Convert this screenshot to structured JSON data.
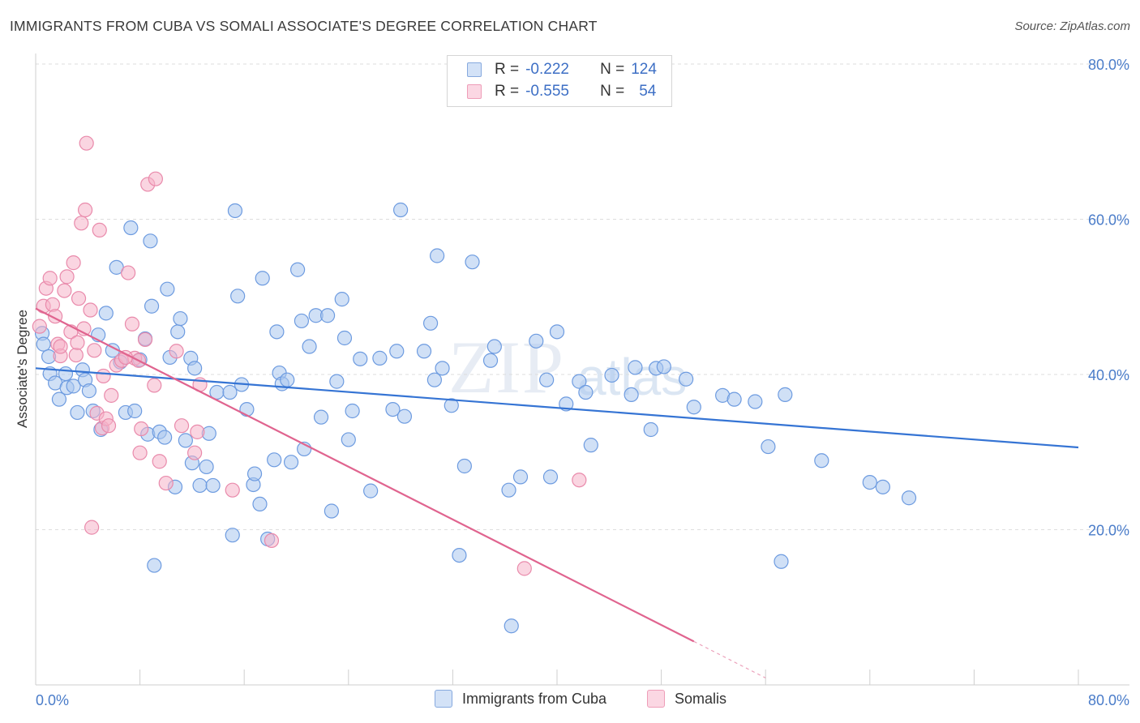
{
  "title": "IMMIGRANTS FROM CUBA VS SOMALI ASSOCIATE'S DEGREE CORRELATION CHART",
  "source": "Source: ZipAtlas.com",
  "watermark": {
    "zip": "ZIP",
    "atlas": "atlas"
  },
  "legend": {
    "rows": [
      {
        "r_label": "R =",
        "r_value": "-0.222",
        "n_label": "N =",
        "n_value": "124",
        "color": "#aac7ee"
      },
      {
        "r_label": "R =",
        "r_value": "-0.555",
        "n_label": "N =",
        "n_value": "54",
        "color": "#f5b8cb"
      }
    ]
  },
  "bottom_legend": [
    {
      "label": "Immigrants from Cuba",
      "color": "#aac7ee"
    },
    {
      "label": "Somalis",
      "color": "#f5b8cb"
    }
  ],
  "colors": {
    "cuba_fill": "#a9c6ee",
    "cuba_stroke": "#6d9be0",
    "cuba_line": "#3574d4",
    "somali_fill": "#f5b3c8",
    "somali_stroke": "#e98aab",
    "somali_line": "#e0648f",
    "grid": "#dddddd",
    "tick_text": "#4a7cc9"
  },
  "chart_data": {
    "type": "scatter",
    "title": "IMMIGRANTS FROM CUBA VS SOMALI ASSOCIATE'S DEGREE CORRELATION CHART",
    "xlabel": "",
    "ylabel": "Associate's Degree",
    "xlim": [
      0,
      80
    ],
    "ylim": [
      0,
      80
    ],
    "x_tick_labels": [
      "0.0%",
      "80.0%"
    ],
    "y_ticks": [
      20,
      40,
      60,
      80
    ],
    "y_tick_labels": [
      "20.0%",
      "40.0%",
      "60.0%",
      "80.0%"
    ],
    "grid": true,
    "legend_position": "top-center",
    "series": [
      {
        "name": "Immigrants from Cuba",
        "trend": {
          "x": [
            0,
            80
          ],
          "y": [
            40.8,
            30.6
          ]
        },
        "points": [
          [
            0.5,
            45.3
          ],
          [
            0.6,
            43.9
          ],
          [
            1.0,
            42.3
          ],
          [
            1.1,
            40.1
          ],
          [
            1.5,
            38.9
          ],
          [
            1.8,
            36.8
          ],
          [
            2.3,
            40.1
          ],
          [
            2.4,
            38.3
          ],
          [
            2.9,
            38.5
          ],
          [
            3.2,
            35.1
          ],
          [
            3.6,
            40.6
          ],
          [
            3.8,
            39.3
          ],
          [
            4.1,
            37.9
          ],
          [
            4.4,
            35.3
          ],
          [
            4.8,
            45.1
          ],
          [
            5.0,
            32.9
          ],
          [
            5.4,
            47.9
          ],
          [
            5.9,
            43.1
          ],
          [
            6.2,
            53.8
          ],
          [
            6.5,
            41.6
          ],
          [
            6.9,
            35.1
          ],
          [
            7.3,
            58.9
          ],
          [
            7.6,
            35.3
          ],
          [
            8.0,
            41.9
          ],
          [
            8.4,
            44.6
          ],
          [
            8.6,
            32.3
          ],
          [
            8.8,
            57.2
          ],
          [
            8.9,
            48.8
          ],
          [
            9.1,
            15.4
          ],
          [
            9.5,
            32.6
          ],
          [
            9.9,
            31.9
          ],
          [
            10.1,
            51.0
          ],
          [
            10.3,
            42.2
          ],
          [
            10.7,
            25.5
          ],
          [
            10.9,
            45.5
          ],
          [
            11.1,
            47.2
          ],
          [
            11.5,
            31.5
          ],
          [
            11.9,
            42.1
          ],
          [
            12.0,
            28.6
          ],
          [
            12.2,
            40.8
          ],
          [
            12.6,
            25.7
          ],
          [
            13.1,
            28.1
          ],
          [
            13.3,
            32.4
          ],
          [
            13.6,
            25.7
          ],
          [
            13.9,
            37.7
          ],
          [
            14.9,
            37.7
          ],
          [
            15.1,
            19.3
          ],
          [
            15.3,
            61.1
          ],
          [
            15.5,
            50.1
          ],
          [
            15.8,
            38.7
          ],
          [
            16.2,
            35.5
          ],
          [
            16.7,
            25.8
          ],
          [
            16.8,
            27.2
          ],
          [
            17.2,
            23.3
          ],
          [
            17.4,
            52.4
          ],
          [
            17.8,
            18.8
          ],
          [
            18.3,
            29.0
          ],
          [
            18.5,
            45.5
          ],
          [
            18.7,
            40.2
          ],
          [
            18.9,
            38.8
          ],
          [
            19.3,
            39.3
          ],
          [
            19.6,
            28.7
          ],
          [
            20.1,
            53.5
          ],
          [
            20.4,
            46.9
          ],
          [
            20.6,
            30.4
          ],
          [
            21.0,
            43.6
          ],
          [
            21.5,
            47.6
          ],
          [
            21.9,
            34.5
          ],
          [
            22.4,
            47.6
          ],
          [
            22.7,
            22.4
          ],
          [
            23.1,
            39.1
          ],
          [
            23.5,
            49.7
          ],
          [
            23.7,
            44.7
          ],
          [
            24.0,
            31.6
          ],
          [
            24.3,
            35.3
          ],
          [
            24.9,
            42.0
          ],
          [
            25.7,
            25.0
          ],
          [
            26.4,
            42.1
          ],
          [
            27.4,
            35.5
          ],
          [
            27.7,
            43.0
          ],
          [
            28.0,
            61.2
          ],
          [
            28.3,
            34.6
          ],
          [
            29.8,
            43.0
          ],
          [
            30.3,
            46.6
          ],
          [
            30.6,
            39.3
          ],
          [
            30.8,
            55.3
          ],
          [
            31.2,
            40.8
          ],
          [
            31.9,
            36.0
          ],
          [
            32.5,
            16.7
          ],
          [
            32.9,
            28.2
          ],
          [
            33.5,
            54.5
          ],
          [
            34.9,
            41.8
          ],
          [
            35.2,
            43.6
          ],
          [
            36.3,
            25.1
          ],
          [
            36.5,
            7.6
          ],
          [
            37.2,
            26.8
          ],
          [
            38.4,
            44.3
          ],
          [
            39.2,
            39.3
          ],
          [
            39.5,
            26.8
          ],
          [
            40.0,
            45.5
          ],
          [
            40.7,
            36.2
          ],
          [
            41.7,
            39.1
          ],
          [
            42.2,
            37.7
          ],
          [
            42.6,
            30.9
          ],
          [
            44.2,
            39.9
          ],
          [
            45.7,
            37.4
          ],
          [
            46.0,
            40.9
          ],
          [
            47.2,
            32.9
          ],
          [
            47.6,
            40.8
          ],
          [
            48.2,
            41.0
          ],
          [
            49.9,
            39.4
          ],
          [
            50.5,
            35.8
          ],
          [
            52.7,
            37.3
          ],
          [
            53.6,
            36.8
          ],
          [
            55.2,
            36.5
          ],
          [
            56.2,
            30.7
          ],
          [
            57.2,
            15.9
          ],
          [
            57.5,
            37.4
          ],
          [
            60.3,
            28.9
          ],
          [
            64.0,
            26.1
          ],
          [
            65.0,
            25.5
          ],
          [
            67.0,
            24.1
          ]
        ]
      },
      {
        "name": "Somalis",
        "trend": {
          "x": [
            0,
            50.5
          ],
          "y": [
            48.5,
            5.6
          ]
        },
        "trend_dashed": {
          "x": [
            50.5,
            56.0
          ],
          "y": [
            5.6,
            0.9
          ]
        },
        "points": [
          [
            0.3,
            46.2
          ],
          [
            0.6,
            48.8
          ],
          [
            0.8,
            51.1
          ],
          [
            1.1,
            52.4
          ],
          [
            1.3,
            49.0
          ],
          [
            1.5,
            47.5
          ],
          [
            1.7,
            43.9
          ],
          [
            1.9,
            42.4
          ],
          [
            2.2,
            50.8
          ],
          [
            2.4,
            52.6
          ],
          [
            2.7,
            45.5
          ],
          [
            2.9,
            54.4
          ],
          [
            3.1,
            42.5
          ],
          [
            3.3,
            49.8
          ],
          [
            3.5,
            59.5
          ],
          [
            3.7,
            45.9
          ],
          [
            3.8,
            61.2
          ],
          [
            3.9,
            69.8
          ],
          [
            4.2,
            48.3
          ],
          [
            4.3,
            20.3
          ],
          [
            4.5,
            43.1
          ],
          [
            4.7,
            35.0
          ],
          [
            4.9,
            58.6
          ],
          [
            5.1,
            33.1
          ],
          [
            5.2,
            39.8
          ],
          [
            5.4,
            34.3
          ],
          [
            5.6,
            33.4
          ],
          [
            5.8,
            37.3
          ],
          [
            6.2,
            41.2
          ],
          [
            6.6,
            41.8
          ],
          [
            7.1,
            53.1
          ],
          [
            7.4,
            46.5
          ],
          [
            7.6,
            42.1
          ],
          [
            7.9,
            41.8
          ],
          [
            8.0,
            29.9
          ],
          [
            8.1,
            33.0
          ],
          [
            8.4,
            44.5
          ],
          [
            8.6,
            64.5
          ],
          [
            9.1,
            38.6
          ],
          [
            9.2,
            65.2
          ],
          [
            9.5,
            28.8
          ],
          [
            10.0,
            26.0
          ],
          [
            10.8,
            43.0
          ],
          [
            11.2,
            33.4
          ],
          [
            12.2,
            29.9
          ],
          [
            12.4,
            32.6
          ],
          [
            12.6,
            38.7
          ],
          [
            15.1,
            25.1
          ],
          [
            18.1,
            18.6
          ],
          [
            37.5,
            15.0
          ],
          [
            41.7,
            26.4
          ],
          [
            6.9,
            42.2
          ],
          [
            3.2,
            44.1
          ],
          [
            1.9,
            43.6
          ]
        ]
      }
    ]
  }
}
